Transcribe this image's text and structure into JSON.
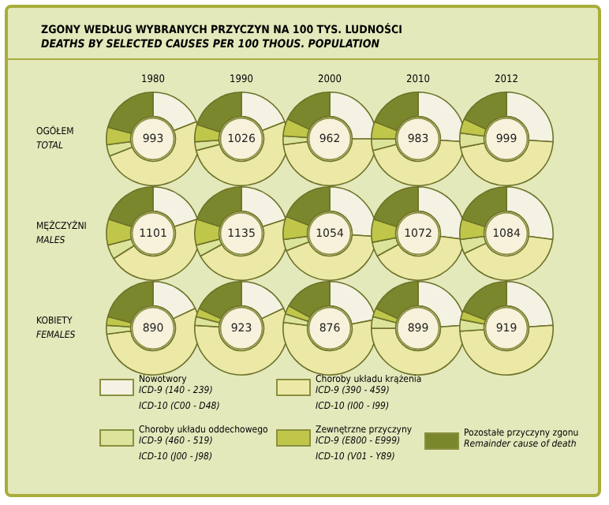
{
  "chart_data": [
    {
      "type": "other",
      "title": "ZGONY WEDŁUG WYBRANYCH PRZYCZYN NA 100 TYS. LUDNOŚCI",
      "subtitle": "DEATHS BY SELECTED CAUSES PER 100 THOUS. POPULATION"
    },
    {
      "type": "donut",
      "title": "1980",
      "ylabel": "OGÓŁEM\nTOTAL",
      "annotations": [
        "993"
      ],
      "categories": [
        "Nowotwory\nICD-9 (140 - 239)\nICD-10 (C00 - D48)",
        "Choroby układu krążenia\nICD-9 (390 - 459)\nICD-10 (I00 - I99)",
        "Choroby układu oddechowego\nICD-9 (460 - 519)\nICD-10 (J00 - J98)",
        "Zewnętrzne przyczyny\nICD-9 (E800 - E999)\nICD-10 (V01 - Y89)",
        "Pozostałe przyczyny zgonu\nRemainder cause of death"
      ],
      "values": [
        19,
        50,
        4,
        6,
        21
      ],
      "colors": [
        "#f4f2e2",
        "#ece8a6",
        "#dce49c",
        "#c0c64a",
        "#7b872c"
      ],
      "legend": "bottom"
    },
    {
      "type": "donut",
      "title": "1990",
      "annotations": [
        "1026"
      ],
      "values": [
        19,
        52,
        3,
        6,
        20
      ],
      "colors": [
        "#f4f2e2",
        "#ece8a6",
        "#dce49c",
        "#c0c64a",
        "#7b872c"
      ]
    },
    {
      "type": "donut",
      "title": "2000",
      "annotations": [
        "962"
      ],
      "values": [
        25,
        48,
        3,
        6,
        18
      ],
      "colors": [
        "#f4f2e2",
        "#ece8a6",
        "#dce49c",
        "#c0c64a",
        "#7b872c"
      ]
    },
    {
      "type": "donut",
      "title": "2010",
      "annotations": [
        "983"
      ],
      "values": [
        26,
        45,
        4,
        6,
        19
      ],
      "colors": [
        "#f4f2e2",
        "#ece8a6",
        "#dce49c",
        "#c0c64a",
        "#7b872c"
      ]
    },
    {
      "type": "donut",
      "title": "2012",
      "annotations": [
        "999"
      ],
      "values": [
        26,
        46,
        5,
        5,
        18
      ],
      "colors": [
        "#f4f2e2",
        "#ece8a6",
        "#dce49c",
        "#c0c64a",
        "#7b872c"
      ]
    },
    {
      "type": "donut",
      "ylabel": "MĘŻCZYŹNI\nMALES",
      "annotations": [
        "1101"
      ],
      "values": [
        20,
        46,
        5,
        9,
        20
      ],
      "colors": [
        "#f4f2e2",
        "#ece8a6",
        "#dce49c",
        "#c0c64a",
        "#7b872c"
      ]
    },
    {
      "type": "donut",
      "annotations": [
        "1135"
      ],
      "values": [
        20,
        47,
        4,
        9,
        20
      ],
      "colors": [
        "#f4f2e2",
        "#ece8a6",
        "#dce49c",
        "#c0c64a",
        "#7b872c"
      ]
    },
    {
      "type": "donut",
      "annotations": [
        "1054"
      ],
      "values": [
        26,
        43,
        4,
        8,
        19
      ],
      "colors": [
        "#f4f2e2",
        "#ece8a6",
        "#dce49c",
        "#c0c64a",
        "#7b872c"
      ]
    },
    {
      "type": "donut",
      "annotations": [
        "1072"
      ],
      "values": [
        27,
        40,
        5,
        8,
        20
      ],
      "colors": [
        "#f4f2e2",
        "#ece8a6",
        "#dce49c",
        "#c0c64a",
        "#7b872c"
      ]
    },
    {
      "type": "donut",
      "annotations": [
        "1084"
      ],
      "values": [
        27,
        41,
        5,
        7,
        20
      ],
      "colors": [
        "#f4f2e2",
        "#ece8a6",
        "#dce49c",
        "#c0c64a",
        "#7b872c"
      ]
    },
    {
      "type": "donut",
      "ylabel": "KOBIETY\nFEMALES",
      "annotations": [
        "890"
      ],
      "values": [
        18,
        55,
        3,
        3,
        21
      ],
      "colors": [
        "#f4f2e2",
        "#ece8a6",
        "#dce49c",
        "#c0c64a",
        "#7b872c"
      ]
    },
    {
      "type": "donut",
      "annotations": [
        "923"
      ],
      "values": [
        18,
        58,
        3,
        3,
        18
      ],
      "colors": [
        "#f4f2e2",
        "#ece8a6",
        "#dce49c",
        "#c0c64a",
        "#7b872c"
      ]
    },
    {
      "type": "donut",
      "annotations": [
        "876"
      ],
      "values": [
        22,
        55,
        3,
        3,
        17
      ],
      "colors": [
        "#f4f2e2",
        "#ece8a6",
        "#dce49c",
        "#c0c64a",
        "#7b872c"
      ]
    },
    {
      "type": "donut",
      "annotations": [
        "899"
      ],
      "values": [
        24,
        51,
        4,
        3,
        18
      ],
      "colors": [
        "#f4f2e2",
        "#ece8a6",
        "#dce49c",
        "#c0c64a",
        "#7b872c"
      ]
    },
    {
      "type": "donut",
      "annotations": [
        "919"
      ],
      "values": [
        24,
        50,
        4,
        3,
        19
      ],
      "colors": [
        "#f4f2e2",
        "#ece8a6",
        "#dce49c",
        "#c0c64a",
        "#7b872c"
      ]
    }
  ]
}
